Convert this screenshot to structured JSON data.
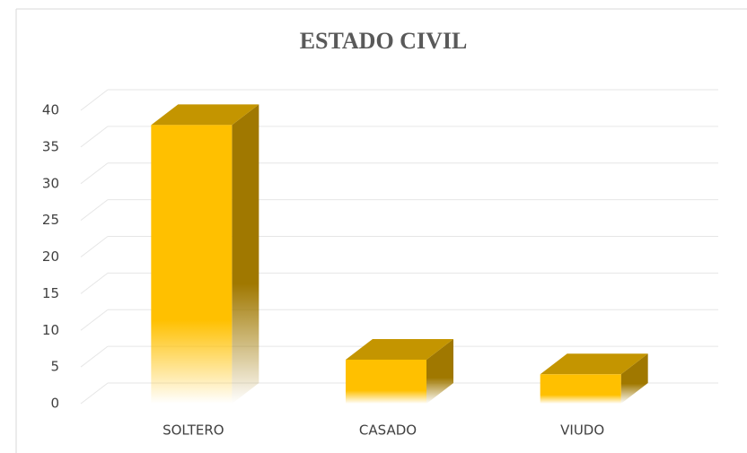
{
  "chart_data": {
    "type": "bar3d",
    "title": "ESTADO CIVIL",
    "categories": [
      "SOLTERO",
      "CASADO",
      "VIUDO"
    ],
    "values": [
      38,
      6,
      4
    ],
    "color": "#ffc000",
    "ylim": [
      0,
      40
    ],
    "yticks": [
      0,
      5,
      10,
      15,
      20,
      25,
      30,
      35,
      40
    ],
    "grid": true
  }
}
